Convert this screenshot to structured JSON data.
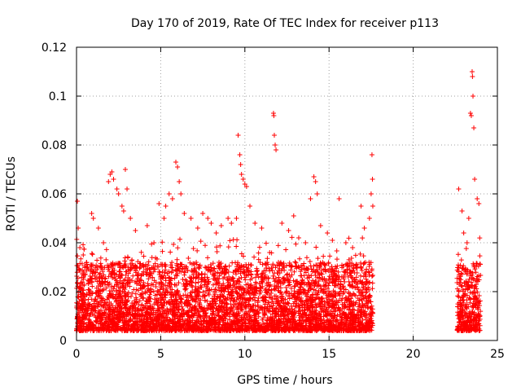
{
  "chart_data": {
    "type": "scatter",
    "title": "Day 170 of 2019, Rate Of TEC Index for receiver p113",
    "xlabel": "GPS time / hours",
    "ylabel": "ROTI / TECUs",
    "xlim": [
      0,
      25
    ],
    "ylim": [
      0,
      0.12
    ],
    "x_ticks": [
      0,
      5,
      10,
      15,
      20,
      25
    ],
    "x_tick_labels": [
      "0",
      "5",
      "10",
      "15",
      "20",
      "25"
    ],
    "y_ticks": [
      0,
      0.02,
      0.04,
      0.06,
      0.08,
      0.1,
      0.12
    ],
    "y_tick_labels": [
      "0",
      "0.02",
      "0.04",
      "0.06",
      "0.08",
      "0.1",
      "0.12"
    ],
    "grid": true,
    "marker": "+",
    "color": "#ff0000",
    "series": [
      {
        "coverage_hours": [
          [
            0,
            17.6
          ],
          [
            22.6,
            24.0
          ]
        ],
        "points": [
          [
            0.05,
            0.057
          ],
          [
            0.1,
            0.046
          ],
          [
            0.2,
            0.038
          ],
          [
            0.4,
            0.035
          ],
          [
            0.9,
            0.052
          ],
          [
            1.0,
            0.05
          ],
          [
            1.3,
            0.046
          ],
          [
            1.6,
            0.04
          ],
          [
            1.9,
            0.065
          ],
          [
            2.0,
            0.068
          ],
          [
            2.1,
            0.069
          ],
          [
            2.2,
            0.066
          ],
          [
            2.4,
            0.062
          ],
          [
            2.5,
            0.06
          ],
          [
            2.7,
            0.055
          ],
          [
            2.8,
            0.053
          ],
          [
            2.9,
            0.07
          ],
          [
            3.0,
            0.062
          ],
          [
            3.2,
            0.05
          ],
          [
            3.5,
            0.045
          ],
          [
            4.2,
            0.047
          ],
          [
            4.6,
            0.04
          ],
          [
            4.9,
            0.056
          ],
          [
            5.2,
            0.05
          ],
          [
            5.3,
            0.055
          ],
          [
            5.5,
            0.06
          ],
          [
            5.7,
            0.058
          ],
          [
            5.9,
            0.073
          ],
          [
            6.0,
            0.071
          ],
          [
            6.1,
            0.065
          ],
          [
            6.2,
            0.06
          ],
          [
            6.4,
            0.052
          ],
          [
            6.8,
            0.05
          ],
          [
            7.2,
            0.046
          ],
          [
            7.5,
            0.052
          ],
          [
            7.8,
            0.05
          ],
          [
            8.0,
            0.048
          ],
          [
            8.3,
            0.044
          ],
          [
            8.6,
            0.047
          ],
          [
            9.0,
            0.05
          ],
          [
            9.2,
            0.048
          ],
          [
            9.5,
            0.05
          ],
          [
            9.6,
            0.084
          ],
          [
            9.7,
            0.076
          ],
          [
            9.75,
            0.072
          ],
          [
            9.8,
            0.068
          ],
          [
            9.9,
            0.066
          ],
          [
            10.0,
            0.064
          ],
          [
            10.1,
            0.063
          ],
          [
            10.3,
            0.055
          ],
          [
            10.6,
            0.048
          ],
          [
            11.0,
            0.046
          ],
          [
            11.7,
            0.093
          ],
          [
            11.72,
            0.092
          ],
          [
            11.75,
            0.084
          ],
          [
            11.8,
            0.08
          ],
          [
            11.85,
            0.078
          ],
          [
            12.2,
            0.048
          ],
          [
            12.6,
            0.045
          ],
          [
            12.9,
            0.051
          ],
          [
            13.2,
            0.042
          ],
          [
            13.6,
            0.04
          ],
          [
            13.9,
            0.058
          ],
          [
            14.1,
            0.067
          ],
          [
            14.2,
            0.065
          ],
          [
            14.3,
            0.06
          ],
          [
            14.5,
            0.047
          ],
          [
            14.9,
            0.044
          ],
          [
            15.2,
            0.041
          ],
          [
            15.6,
            0.058
          ],
          [
            16.0,
            0.04
          ],
          [
            16.4,
            0.038
          ],
          [
            16.9,
            0.055
          ],
          [
            17.1,
            0.046
          ],
          [
            17.4,
            0.05
          ],
          [
            17.5,
            0.06
          ],
          [
            17.55,
            0.076
          ],
          [
            17.58,
            0.066
          ],
          [
            17.6,
            0.055
          ],
          [
            22.7,
            0.062
          ],
          [
            22.9,
            0.053
          ],
          [
            23.0,
            0.044
          ],
          [
            23.2,
            0.04
          ],
          [
            23.3,
            0.05
          ],
          [
            23.4,
            0.093
          ],
          [
            23.45,
            0.092
          ],
          [
            23.5,
            0.11
          ],
          [
            23.52,
            0.108
          ],
          [
            23.55,
            0.1
          ],
          [
            23.6,
            0.087
          ],
          [
            23.65,
            0.066
          ],
          [
            23.8,
            0.058
          ],
          [
            23.9,
            0.056
          ]
        ]
      }
    ]
  }
}
